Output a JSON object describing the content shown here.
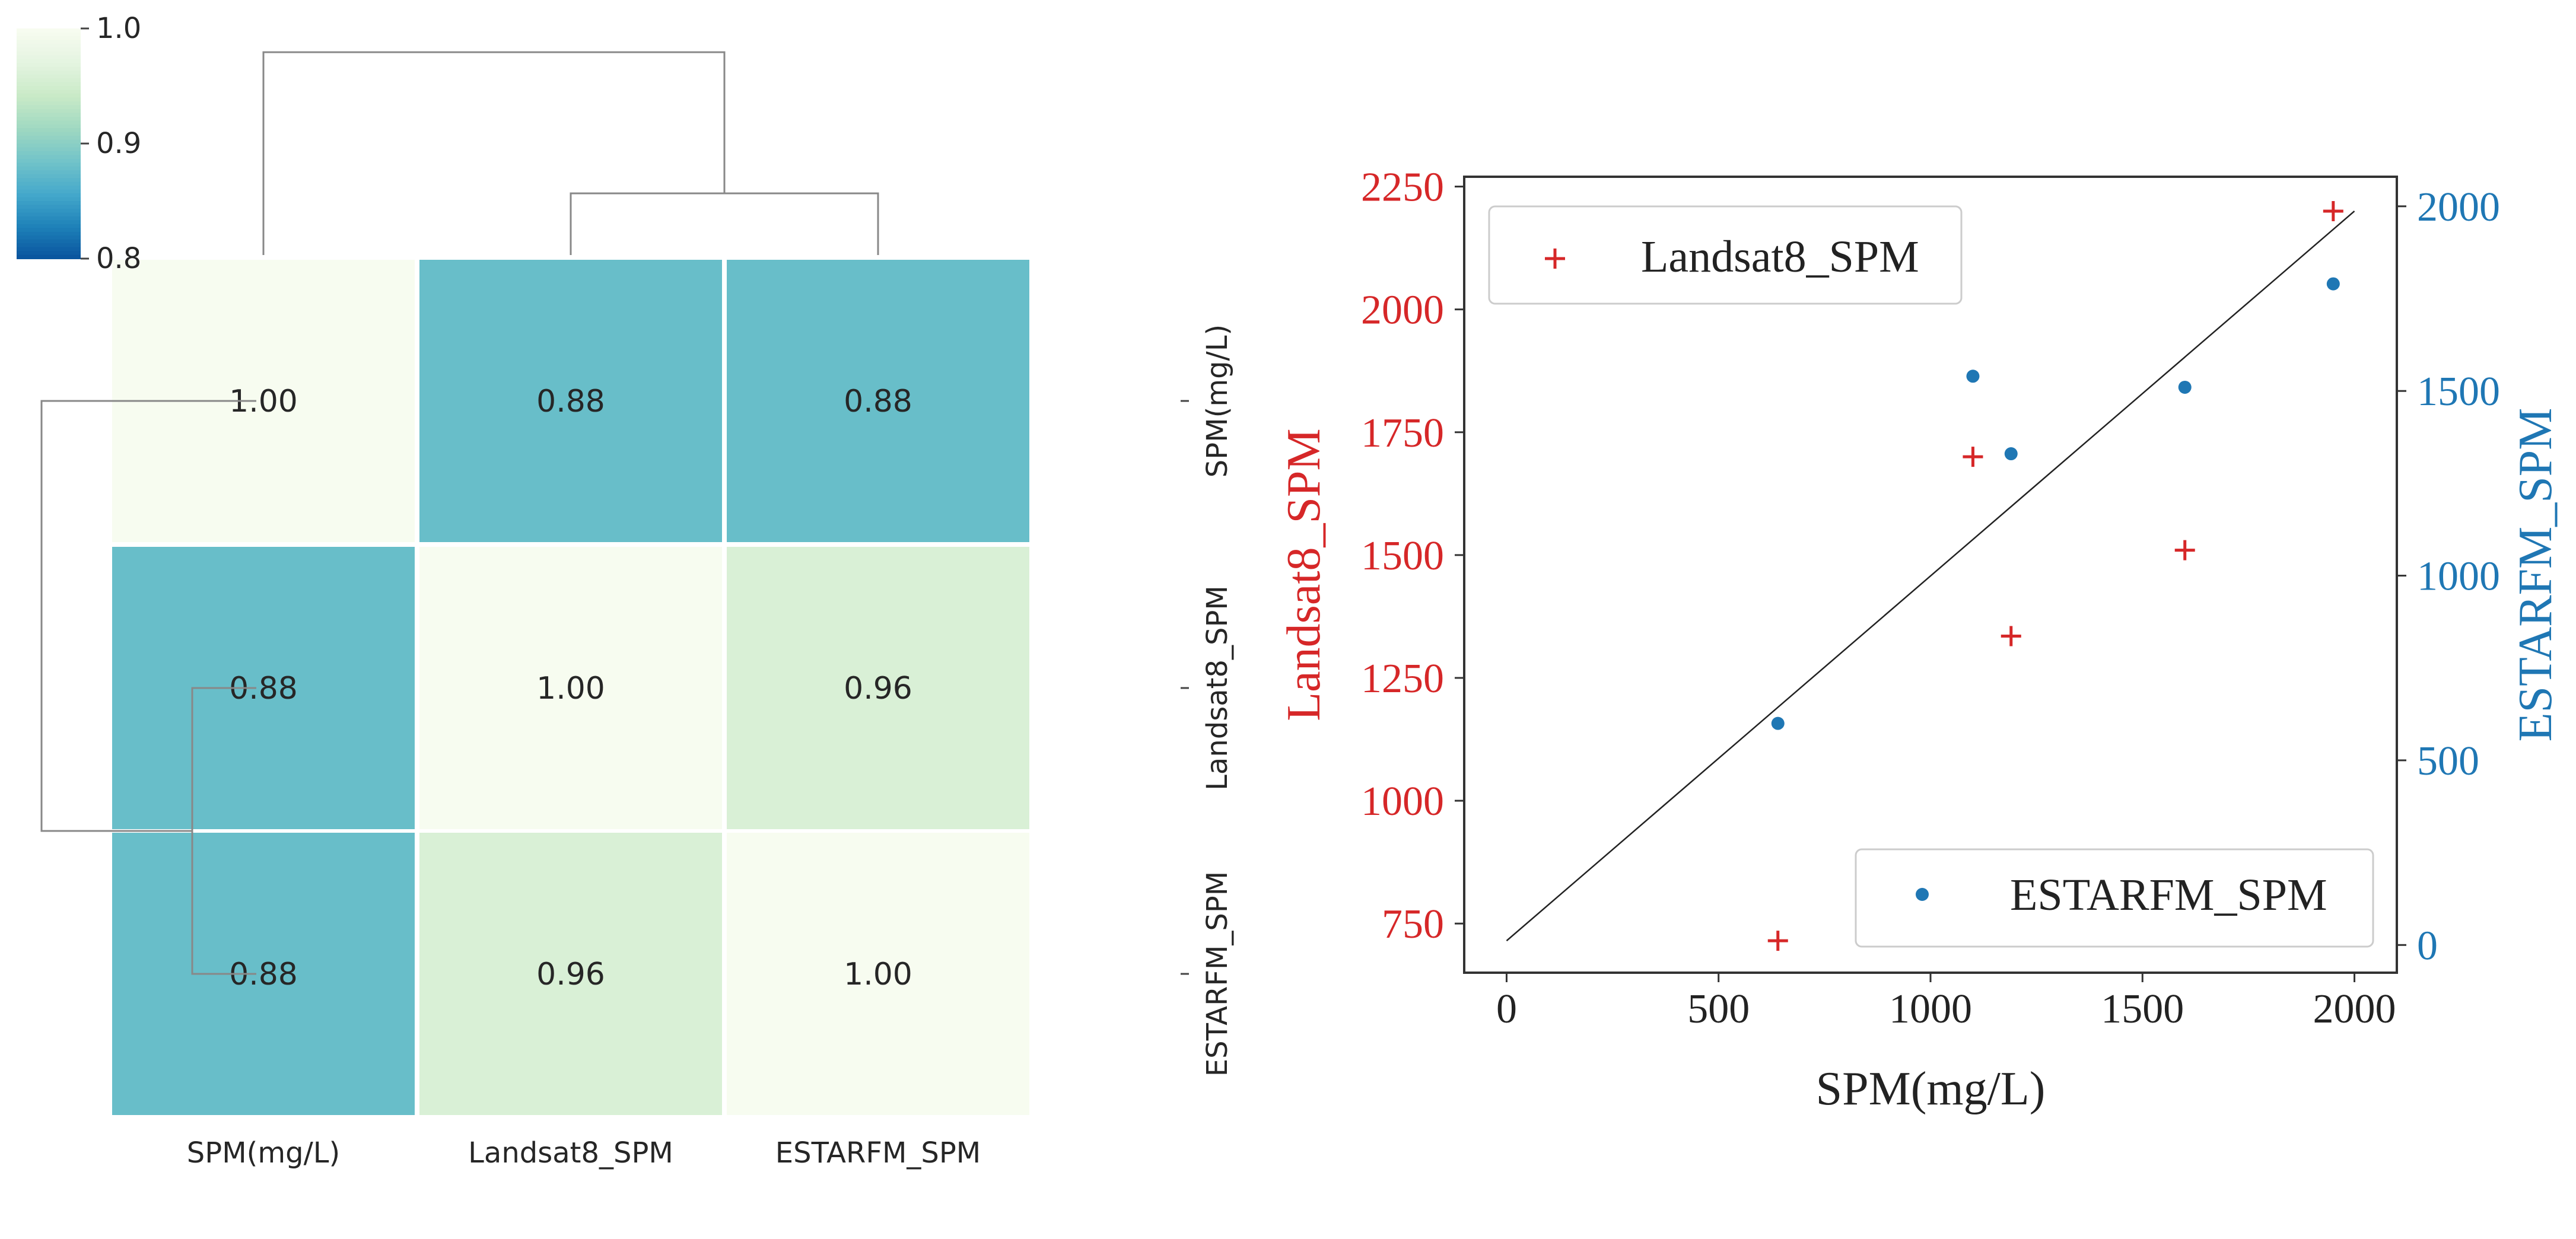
{
  "colors": {
    "red": "#d62728",
    "blue": "#1f77b4",
    "cmap": [
      "#08519c",
      "#1d80b8",
      "#44a8cb",
      "#71c3c9",
      "#9fd8c1",
      "#c9eac7",
      "#e4f4e0",
      "#f7fcf0"
    ]
  },
  "chart_data": [
    {
      "type": "heatmap",
      "title": "",
      "rows": [
        "SPM(mg/L)",
        "Landsat8_SPM",
        "ESTARFM_SPM"
      ],
      "cols": [
        "SPM(mg/L)",
        "Landsat8_SPM",
        "ESTARFM_SPM"
      ],
      "values": [
        [
          1.0,
          0.88,
          0.88
        ],
        [
          0.88,
          1.0,
          0.96
        ],
        [
          0.88,
          0.96,
          1.0
        ]
      ],
      "cell_labels": [
        [
          "1.00",
          "0.88",
          "0.88"
        ],
        [
          "0.88",
          "1.00",
          "0.96"
        ],
        [
          "0.88",
          "0.96",
          "1.00"
        ]
      ],
      "colorbar": {
        "min": 0.8,
        "max": 1.0,
        "ticks": [
          "1.0",
          "0.9",
          "0.8"
        ]
      },
      "dendrogram": {
        "top": true,
        "left": true
      }
    },
    {
      "type": "scatter",
      "xlabel": "SPM(mg/L)",
      "ylabel": "Landsat8_SPM",
      "ylabel_right": "ESTARFM_SPM",
      "xlim": [
        -100,
        2100
      ],
      "ylim": [
        650,
        2270
      ],
      "ylim_right": [
        -75,
        2080
      ],
      "xticks": [
        0,
        500,
        1000,
        1500,
        2000
      ],
      "yticks": [
        750,
        1000,
        1250,
        1500,
        1750,
        2000,
        2250
      ],
      "yticks_right": [
        0,
        500,
        1000,
        1500,
        2000
      ],
      "xticklabels": [
        "0",
        "500",
        "1000",
        "1500",
        "2000"
      ],
      "yticklabels": [
        "750",
        "1000",
        "1250",
        "1500",
        "1750",
        "2000",
        "2250"
      ],
      "yticklabels_right": [
        "0",
        "500",
        "1000",
        "1500",
        "2000"
      ],
      "series": [
        {
          "name": "Landsat8_SPM",
          "marker": "+",
          "axis": "left",
          "x": [
            640,
            1100,
            1190,
            1600,
            1950
          ],
          "y": [
            715,
            1700,
            1335,
            1510,
            2200
          ]
        },
        {
          "name": "ESTARFM_SPM",
          "marker": "dot",
          "axis": "right",
          "x": [
            640,
            1100,
            1190,
            1600,
            1950
          ],
          "y": [
            600,
            1540,
            1330,
            1510,
            1790
          ]
        }
      ],
      "line": {
        "x": [
          0,
          2000
        ],
        "y_left": [
          715,
          2200
        ]
      },
      "legends": [
        {
          "label": "Landsat8_SPM",
          "placement": "upper-left"
        },
        {
          "label": "ESTARFM_SPM",
          "placement": "lower-right"
        }
      ]
    }
  ]
}
